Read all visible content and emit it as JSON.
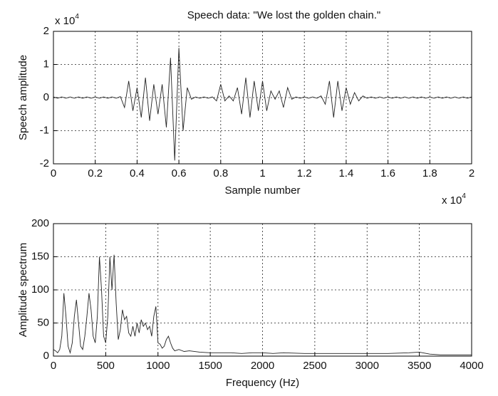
{
  "chart_data": [
    {
      "type": "line",
      "title": "Speech data: \"We lost the golden chain.\"",
      "x_label": "Sample number",
      "y_label": "Speech amplitude",
      "x_multiplier": "x 10",
      "x_multiplier_exp": "4",
      "y_multiplier": "x 10",
      "y_multiplier_exp": "4",
      "grid": true,
      "xlim": [
        0,
        20000
      ],
      "ylim": [
        -20000,
        20000
      ],
      "xticks": [
        0,
        {
          "value": 2000,
          "label": "0.2"
        },
        {
          "value": 4000,
          "label": "0.4"
        },
        {
          "value": 6000,
          "label": "0.6"
        },
        {
          "value": 8000,
          "label": "0.8"
        },
        {
          "value": 10000,
          "label": "1"
        },
        {
          "value": 12000,
          "label": "1.2"
        },
        {
          "value": 14000,
          "label": "1.4"
        },
        {
          "value": 16000,
          "label": "1.6"
        },
        {
          "value": 18000,
          "label": "1.8"
        },
        {
          "value": 20000,
          "label": "2"
        }
      ],
      "yticks": [
        {
          "value": -20000,
          "label": "-2"
        },
        {
          "value": -10000,
          "label": "-1"
        },
        0,
        {
          "value": 10000,
          "label": "1"
        },
        {
          "value": 20000,
          "label": "2"
        }
      ],
      "x": [
        0,
        200,
        400,
        600,
        800,
        1000,
        1200,
        1400,
        1600,
        1800,
        2000,
        2200,
        2400,
        2600,
        2800,
        3000,
        3200,
        3400,
        3600,
        3800,
        4000,
        4200,
        4400,
        4600,
        4800,
        5000,
        5200,
        5400,
        5600,
        5800,
        6000,
        6200,
        6400,
        6600,
        6800,
        7000,
        7200,
        7400,
        7600,
        7800,
        8000,
        8200,
        8400,
        8600,
        8800,
        9000,
        9200,
        9400,
        9600,
        9800,
        10000,
        10200,
        10400,
        10600,
        10800,
        11000,
        11200,
        11400,
        11600,
        11800,
        12000,
        12200,
        12400,
        12600,
        12800,
        13000,
        13200,
        13400,
        13600,
        13800,
        14000,
        14200,
        14400,
        14600,
        14800,
        15000,
        15200,
        15400,
        15600,
        15800,
        16000,
        16200,
        16400,
        16600,
        16800,
        17000,
        17200,
        17400,
        17600,
        17800,
        18000,
        18200,
        18400,
        18600,
        18800,
        19000,
        19200,
        19400,
        19600,
        19800,
        20000
      ],
      "series": [
        {
          "color": "#222222",
          "values": [
            200,
            -200,
            200,
            -200,
            200,
            -200,
            200,
            -200,
            200,
            -200,
            200,
            -200,
            200,
            -200,
            200,
            -200,
            300,
            -3000,
            5000,
            -4000,
            3000,
            -6000,
            6000,
            -7000,
            4000,
            -5000,
            4000,
            -9000,
            12000,
            -19000,
            15000,
            -10000,
            3000,
            -500,
            200,
            -200,
            200,
            -200,
            200,
            -1000,
            4000,
            -1000,
            500,
            -1000,
            3000,
            -5000,
            6000,
            -6000,
            5000,
            -4000,
            5000,
            -4000,
            2000,
            -500,
            2000,
            -3000,
            3000,
            -500,
            200,
            -200,
            200,
            -200,
            200,
            -200,
            500,
            -2000,
            5000,
            -6000,
            5000,
            -4000,
            3000,
            -2000,
            1500,
            -1000,
            500,
            -200,
            200,
            -200,
            200,
            -200,
            200,
            -200,
            200,
            -200,
            200,
            -200,
            200,
            -200,
            200,
            -200,
            200,
            -200,
            200,
            -200,
            200,
            -200,
            200,
            -200,
            200,
            -200,
            200
          ]
        }
      ]
    },
    {
      "type": "line",
      "x_label": "Frequency (Hz)",
      "y_label": "Amplitude spectrum",
      "grid": true,
      "xlim": [
        0,
        4000
      ],
      "ylim": [
        0,
        200
      ],
      "xticks": [
        0,
        500,
        1000,
        1500,
        2000,
        2500,
        3000,
        3500,
        4000
      ],
      "yticks": [
        0,
        50,
        100,
        150,
        200
      ],
      "x": [
        0,
        20,
        40,
        60,
        80,
        100,
        120,
        140,
        160,
        180,
        200,
        220,
        240,
        260,
        280,
        300,
        320,
        340,
        360,
        380,
        400,
        420,
        440,
        460,
        480,
        500,
        520,
        540,
        560,
        580,
        600,
        620,
        640,
        660,
        680,
        700,
        720,
        740,
        760,
        780,
        800,
        820,
        840,
        860,
        880,
        900,
        920,
        940,
        960,
        980,
        1000,
        1020,
        1040,
        1060,
        1080,
        1100,
        1120,
        1140,
        1160,
        1200,
        1250,
        1300,
        1400,
        1500,
        1600,
        1700,
        1800,
        1900,
        2000,
        2100,
        2200,
        2400,
        2600,
        2800,
        3000,
        3200,
        3400,
        3500,
        3600,
        3700,
        3800,
        4000
      ],
      "series": [
        {
          "color": "#222222",
          "values": [
            10,
            8,
            5,
            10,
            30,
            95,
            60,
            15,
            5,
            20,
            60,
            85,
            50,
            15,
            10,
            30,
            60,
            95,
            70,
            30,
            20,
            60,
            150,
            100,
            30,
            20,
            60,
            150,
            100,
            153,
            80,
            25,
            40,
            70,
            55,
            60,
            35,
            30,
            45,
            30,
            50,
            35,
            55,
            45,
            50,
            40,
            45,
            30,
            60,
            75,
            20,
            18,
            12,
            15,
            25,
            30,
            20,
            12,
            8,
            10,
            7,
            8,
            6,
            5,
            5,
            5,
            4,
            5,
            5,
            4,
            5,
            4,
            4,
            4,
            4,
            4,
            5,
            6,
            3,
            2,
            2,
            2
          ]
        }
      ]
    }
  ]
}
